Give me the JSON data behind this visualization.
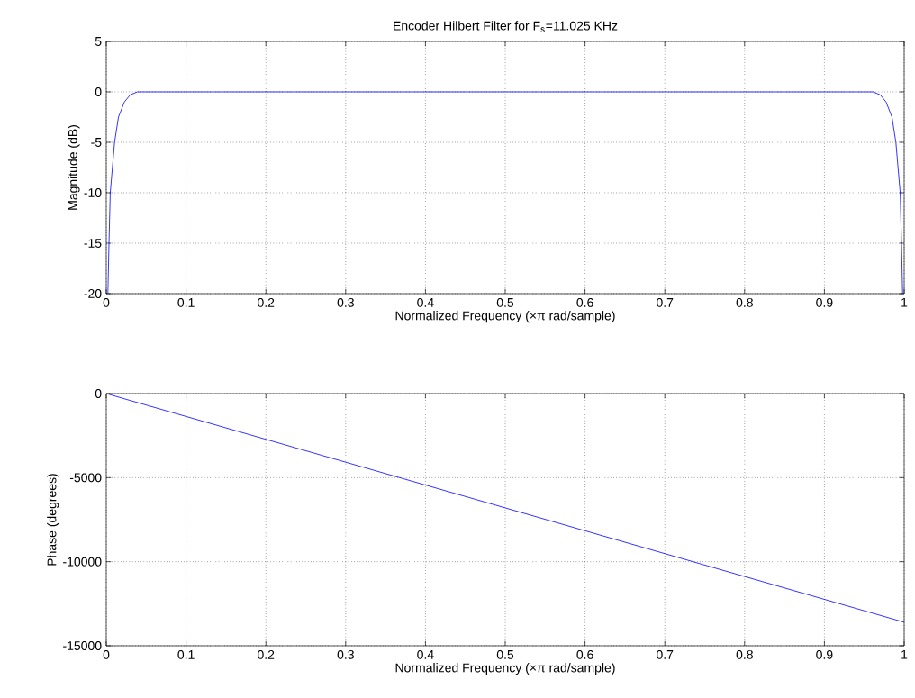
{
  "chart_data": [
    {
      "type": "line",
      "title": "Encoder Hilbert Filter for F$_{s}$=11.025 KHz",
      "xlabel": "Normalized Frequency  (×π rad/sample)",
      "ylabel": "Magnitude (dB)",
      "x": [
        0.002,
        0.0034,
        0.005,
        0.0104,
        0.0153,
        0.0227,
        0.03,
        0.039,
        0.961,
        0.97,
        0.9773,
        0.9847,
        0.9896,
        0.995,
        0.9966,
        0.998
      ],
      "values": [
        -20,
        -15,
        -10,
        -5,
        -2.5,
        -1,
        -0.3,
        0,
        0,
        -0.3,
        -1,
        -2.5,
        -5,
        -10,
        -15,
        -20
      ],
      "color": "#0000ff",
      "xlim": [
        0,
        1
      ],
      "ylim": [
        -20,
        5
      ],
      "xticks": [
        0,
        0.1,
        0.2,
        0.3,
        0.4,
        0.5,
        0.6,
        0.7,
        0.8,
        0.9,
        1
      ],
      "yticks": [
        -20,
        -15,
        -10,
        -5,
        0,
        5
      ],
      "grid": true
    },
    {
      "type": "line",
      "xlabel": "Normalized Frequency  (×π rad/sample)",
      "ylabel": "Phase (degrees)",
      "x": [
        0,
        1
      ],
      "values": [
        0,
        -13600
      ],
      "color": "#0000ff",
      "xlim": [
        0,
        1
      ],
      "ylim": [
        -15000,
        0
      ],
      "xticks": [
        0,
        0.1,
        0.2,
        0.3,
        0.4,
        0.5,
        0.6,
        0.7,
        0.8,
        0.9,
        1
      ],
      "yticks": [
        -15000,
        -10000,
        -5000,
        0
      ],
      "grid": true
    }
  ]
}
